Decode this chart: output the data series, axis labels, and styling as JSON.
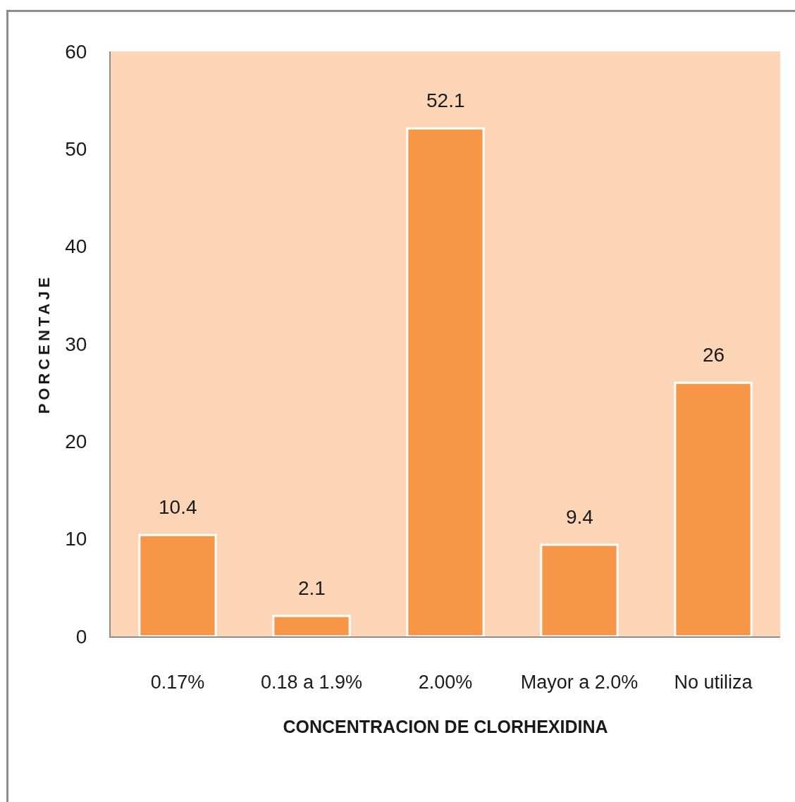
{
  "chart_data": {
    "type": "bar",
    "categories": [
      "0.17%",
      "0.18 a 1.9%",
      "2.00%",
      "Mayor a 2.0%",
      "No utiliza"
    ],
    "values": [
      10.4,
      2.1,
      52.1,
      9.4,
      26
    ],
    "color": "#f79646",
    "xlabel": "CONCENTRACION DE CLORHEXIDINA",
    "ylabel": "PORCENTAJE",
    "ylim": [
      0,
      60
    ],
    "yticks": [
      0,
      10,
      20,
      30,
      40,
      50,
      60
    ],
    "data_labels": true
  }
}
